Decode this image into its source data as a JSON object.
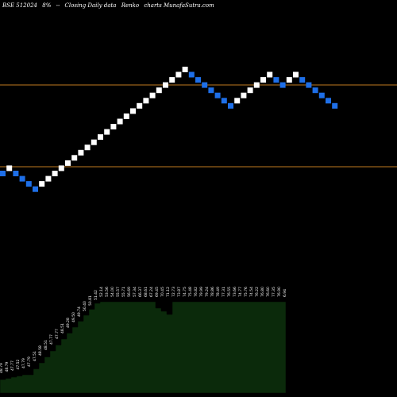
{
  "header": {
    "symbol": "BSE 512024",
    "change": "8%",
    "arrow": "--",
    "description": "Closing Daily data",
    "chart_kind": "Renko",
    "site": "charts MunafaSutra.com"
  },
  "colors": {
    "background": "#000000",
    "up_brick": "#ffffff",
    "down_brick": "#1e6fe8",
    "level_line": "#c07a20",
    "area_fill": "#0b2a0b"
  },
  "chart_data": {
    "type": "renko",
    "brick_colors": [
      "down",
      "up",
      "down",
      "down",
      "down",
      "down",
      "up",
      "up",
      "up",
      "up",
      "up",
      "up",
      "up",
      "up",
      "up",
      "up",
      "up",
      "up",
      "up",
      "up",
      "up",
      "up",
      "up",
      "up",
      "up",
      "up",
      "up",
      "up",
      "up",
      "down",
      "down",
      "down",
      "down",
      "down",
      "down",
      "down",
      "up",
      "up",
      "up",
      "up",
      "up",
      "up",
      "down",
      "down",
      "up",
      "up",
      "down",
      "down",
      "down",
      "down",
      "down",
      "down"
    ],
    "level_lines": [
      "upper",
      "lower"
    ],
    "volume_labels": [
      "48.79",
      "48.79",
      "47.77",
      "47.52",
      "47.79",
      "47.79",
      "47.51",
      "48.58",
      "48.51",
      "47.77",
      "47.77",
      "48.51",
      "49.28",
      "49.50",
      "49.74",
      "50.40",
      "50.81",
      "51.42",
      "52.14",
      "53.56",
      "54.00",
      "55.57",
      "55.71",
      "56.69",
      "57.34",
      "66.37",
      "68.61",
      "67.24",
      "69.45",
      "70.45",
      "71.12",
      "72.73",
      "73.87",
      "74.75",
      "75.48",
      "76.82",
      "79.99",
      "79.24",
      "78.86",
      "78.49",
      "77.31",
      "76.55",
      "73.66",
      "74.77",
      "75.76",
      "74.54",
      "76.22",
      "76.80",
      "76.60",
      "77.35",
      "76.90",
      "6.94"
    ]
  }
}
